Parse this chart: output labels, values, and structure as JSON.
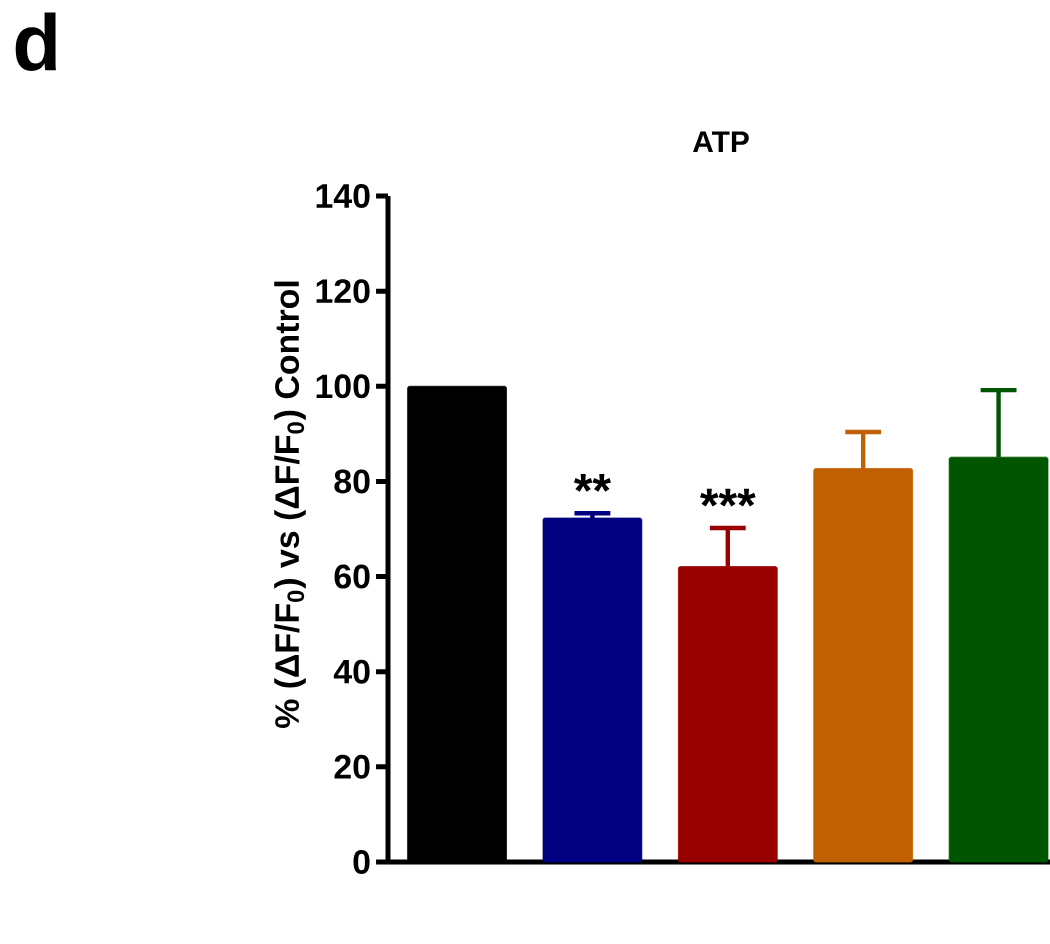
{
  "chart_data": {
    "type": "bar",
    "title": "ATP",
    "ylabel": "% (ΔF/F$_{0}$) vs (ΔF/F$_{0}$) Control",
    "categories": [
      null,
      null,
      null,
      null,
      null
    ],
    "values": [
      100,
      72.3,
      62.1,
      82.7,
      85.1
    ],
    "colors": [
      "#000000",
      "#000080",
      "#990000",
      "#c06000",
      "#005500"
    ],
    "errors": [
      null,
      [
        72.3,
        73.3
      ],
      [
        62.1,
        70.2
      ],
      [
        82.7,
        90.4
      ],
      [
        85.1,
        99.2
      ]
    ],
    "value_labels": [
      null,
      "**",
      "***",
      null,
      null
    ],
    "ylim": [
      0,
      140
    ],
    "yticks": [
      0,
      20,
      40,
      60,
      80,
      100,
      120,
      140
    ],
    "annotations": [
      "d"
    ]
  }
}
